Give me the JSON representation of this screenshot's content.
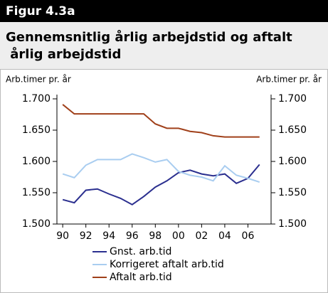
{
  "chart_data": {
    "type": "line",
    "figure_label": "Figur 4.3a",
    "title": "Gennemsnitlig årlig arbejdstid og aftalt årlig arbejdstid",
    "ylabel": "Arb.timer pr. år",
    "y2label": "Arb.timer pr. år",
    "x": [
      1990,
      1991,
      1992,
      1993,
      1994,
      1995,
      1996,
      1997,
      1998,
      1999,
      2000,
      2001,
      2002,
      2003,
      2004,
      2005,
      2006,
      2007
    ],
    "series": [
      {
        "name": "Gnst. arb.tid",
        "color": "#2b2f8f",
        "values": [
          1539,
          1534,
          1554,
          1556,
          1548,
          1541,
          1531,
          1544,
          1559,
          1569,
          1582,
          1586,
          1580,
          1577,
          1580,
          1565,
          1573,
          1595
        ]
      },
      {
        "name": "Korrigeret aftalt arb.tid",
        "color": "#a9cdf0",
        "values": [
          1580,
          1574,
          1594,
          1603,
          1603,
          1603,
          1612,
          1606,
          1599,
          1603,
          1584,
          1578,
          1575,
          1569,
          1593,
          1578,
          1573,
          1567
        ]
      },
      {
        "name": "Aftalt arb.tid",
        "color": "#a0401a",
        "values": [
          1691,
          1676,
          1676,
          1676,
          1676,
          1676,
          1676,
          1676,
          1660,
          1653,
          1653,
          1648,
          1646,
          1641,
          1639,
          1639,
          1639,
          1639
        ]
      }
    ],
    "xlim": [
      1989.5,
      2008
    ],
    "xticks": [
      {
        "value": 1990,
        "label": "90"
      },
      {
        "value": 1992,
        "label": "92"
      },
      {
        "value": 1994,
        "label": "94"
      },
      {
        "value": 1996,
        "label": "96"
      },
      {
        "value": 1998,
        "label": "98"
      },
      {
        "value": 2000,
        "label": "00"
      },
      {
        "value": 2002,
        "label": "02"
      },
      {
        "value": 2004,
        "label": "04"
      },
      {
        "value": 2006,
        "label": "06"
      }
    ],
    "ylim": [
      1500,
      1700
    ],
    "yticks": [
      {
        "value": 1500,
        "label": "1.500"
      },
      {
        "value": 1550,
        "label": "1.550"
      },
      {
        "value": 1600,
        "label": "1.600"
      },
      {
        "value": 1650,
        "label": "1.650"
      },
      {
        "value": 1700,
        "label": "1.700"
      }
    ],
    "y2lim": [
      1500,
      1700
    ],
    "y2ticks": [
      {
        "value": 1500,
        "label": "1.500"
      },
      {
        "value": 1550,
        "label": "1.550"
      },
      {
        "value": 1600,
        "label": "1.600"
      },
      {
        "value": 1650,
        "label": "1.650"
      },
      {
        "value": 1700,
        "label": "1.700"
      }
    ]
  }
}
